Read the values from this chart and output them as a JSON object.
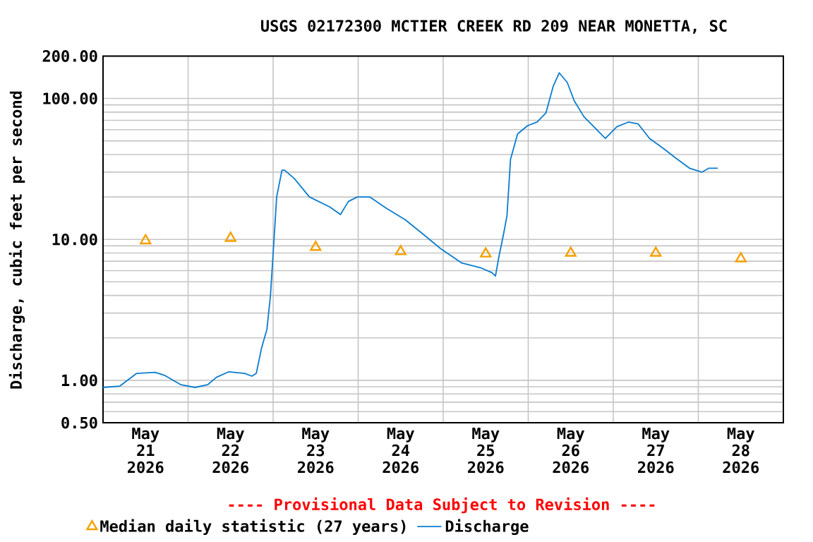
{
  "chart_data": {
    "type": "line",
    "title": "USGS 02172300 MCTIER CREEK RD 209 NEAR MONETTA, SC",
    "ylabel": "Discharge, cubic feet per second",
    "annotations": [
      "---- Provisional Data Subject to Revision ----"
    ],
    "log": "y",
    "grid": true,
    "legend": "bottom",
    "xlim": [
      "2026-05-21T00:00",
      "2026-05-29T00:00"
    ],
    "xticks": [
      {
        "value": "2026-05-21T12:00",
        "label": "May 21 2026"
      },
      {
        "value": "2026-05-22T12:00",
        "label": "May 22 2026"
      },
      {
        "value": "2026-05-23T12:00",
        "label": "May 23 2026"
      },
      {
        "value": "2026-05-24T12:00",
        "label": "May 24 2026"
      },
      {
        "value": "2026-05-25T12:00",
        "label": "May 25 2026"
      },
      {
        "value": "2026-05-26T12:00",
        "label": "May 26 2026"
      },
      {
        "value": "2026-05-27T12:00",
        "label": "May 27 2026"
      },
      {
        "value": "2026-05-28T12:00",
        "label": "May 28 2026"
      },
      {
        "value": "2026-05-22T00:00",
        "label": null
      },
      {
        "value": "2026-05-23T00:00",
        "label": null
      },
      {
        "value": "2026-05-24T00:00",
        "label": null
      },
      {
        "value": "2026-05-25T00:00",
        "label": null
      },
      {
        "value": "2026-05-26T00:00",
        "label": null
      },
      {
        "value": "2026-05-27T00:00",
        "label": null
      },
      {
        "value": "2026-05-28T00:00",
        "label": null
      }
    ],
    "ylim": [
      0.5,
      200
    ],
    "yticks": [
      {
        "value": 0.5,
        "label": "0.50"
      },
      {
        "value": 1,
        "label": "1.00"
      },
      {
        "value": 10,
        "label": "10.00"
      },
      {
        "value": 100,
        "label": "100.00"
      },
      {
        "value": 200,
        "label": "200.00"
      }
    ],
    "series": [
      {
        "name": "Median daily statistic (27 years)",
        "type": "scatter",
        "marker": "triangle",
        "color": "#f5a000",
        "x": [
          "2026-05-21T12:00",
          "2026-05-22T12:00",
          "2026-05-23T12:00",
          "2026-05-24T12:00",
          "2026-05-25T12:00",
          "2026-05-26T12:00",
          "2026-05-27T12:00",
          "2026-05-28T12:00"
        ],
        "values": [
          9.8,
          10.2,
          8.8,
          8.2,
          7.9,
          8.0,
          8.0,
          7.3
        ]
      },
      {
        "name": "Discharge",
        "marker": "none",
        "color": "#0a7ccf",
        "x": [
          "2026-05-21T00:00",
          "2026-05-21T04:45",
          "2026-05-21T09:30",
          "2026-05-21T14:45",
          "2026-05-21T17:30",
          "2026-05-21T22:00",
          "2026-05-22T02:00",
          "2026-05-22T05:30",
          "2026-05-22T08:00",
          "2026-05-22T11:30",
          "2026-05-22T16:00",
          "2026-05-22T18:00",
          "2026-05-22T19:15",
          "2026-05-22T20:45",
          "2026-05-22T22:15",
          "2026-05-22T23:15",
          "2026-05-23T00:00",
          "2026-05-23T01:00",
          "2026-05-23T02:30",
          "2026-05-23T03:15",
          "2026-05-23T06:00",
          "2026-05-23T10:15",
          "2026-05-23T16:00",
          "2026-05-23T19:00",
          "2026-05-23T21:15",
          "2026-05-23T23:45",
          "2026-05-24T03:15",
          "2026-05-24T08:00",
          "2026-05-24T13:15",
          "2026-05-24T18:30",
          "2026-05-24T23:15",
          "2026-05-25T05:15",
          "2026-05-25T10:30",
          "2026-05-25T13:45",
          "2026-05-25T14:45",
          "2026-05-25T15:45",
          "2026-05-25T17:00",
          "2026-05-25T18:00",
          "2026-05-25T19:00",
          "2026-05-25T21:00",
          "2026-05-25T23:45",
          "2026-05-26T02:30",
          "2026-05-26T05:00",
          "2026-05-26T07:00",
          "2026-05-26T08:45",
          "2026-05-26T11:00",
          "2026-05-26T13:00",
          "2026-05-26T15:45",
          "2026-05-26T17:45",
          "2026-05-26T21:45",
          "2026-05-27T01:00",
          "2026-05-27T04:15",
          "2026-05-27T07:00",
          "2026-05-27T10:15",
          "2026-05-27T14:15",
          "2026-05-27T17:30",
          "2026-05-27T21:30",
          "2026-05-28T01:00",
          "2026-05-28T03:00",
          "2026-05-28T05:30"
        ],
        "values": [
          0.89,
          0.91,
          1.12,
          1.14,
          1.08,
          0.93,
          0.89,
          0.93,
          1.05,
          1.15,
          1.12,
          1.07,
          1.12,
          1.7,
          2.3,
          4.0,
          7.9,
          20,
          31,
          31,
          27,
          20,
          17,
          15,
          18.6,
          20,
          20,
          16.6,
          13.8,
          10.8,
          8.6,
          6.8,
          6.3,
          5.8,
          5.5,
          7.6,
          10.8,
          14.7,
          37,
          56,
          64,
          68,
          79,
          121,
          152,
          130,
          96,
          74,
          66,
          52,
          63,
          68,
          66,
          52,
          44,
          38,
          32,
          30,
          32,
          32
        ]
      }
    ]
  }
}
